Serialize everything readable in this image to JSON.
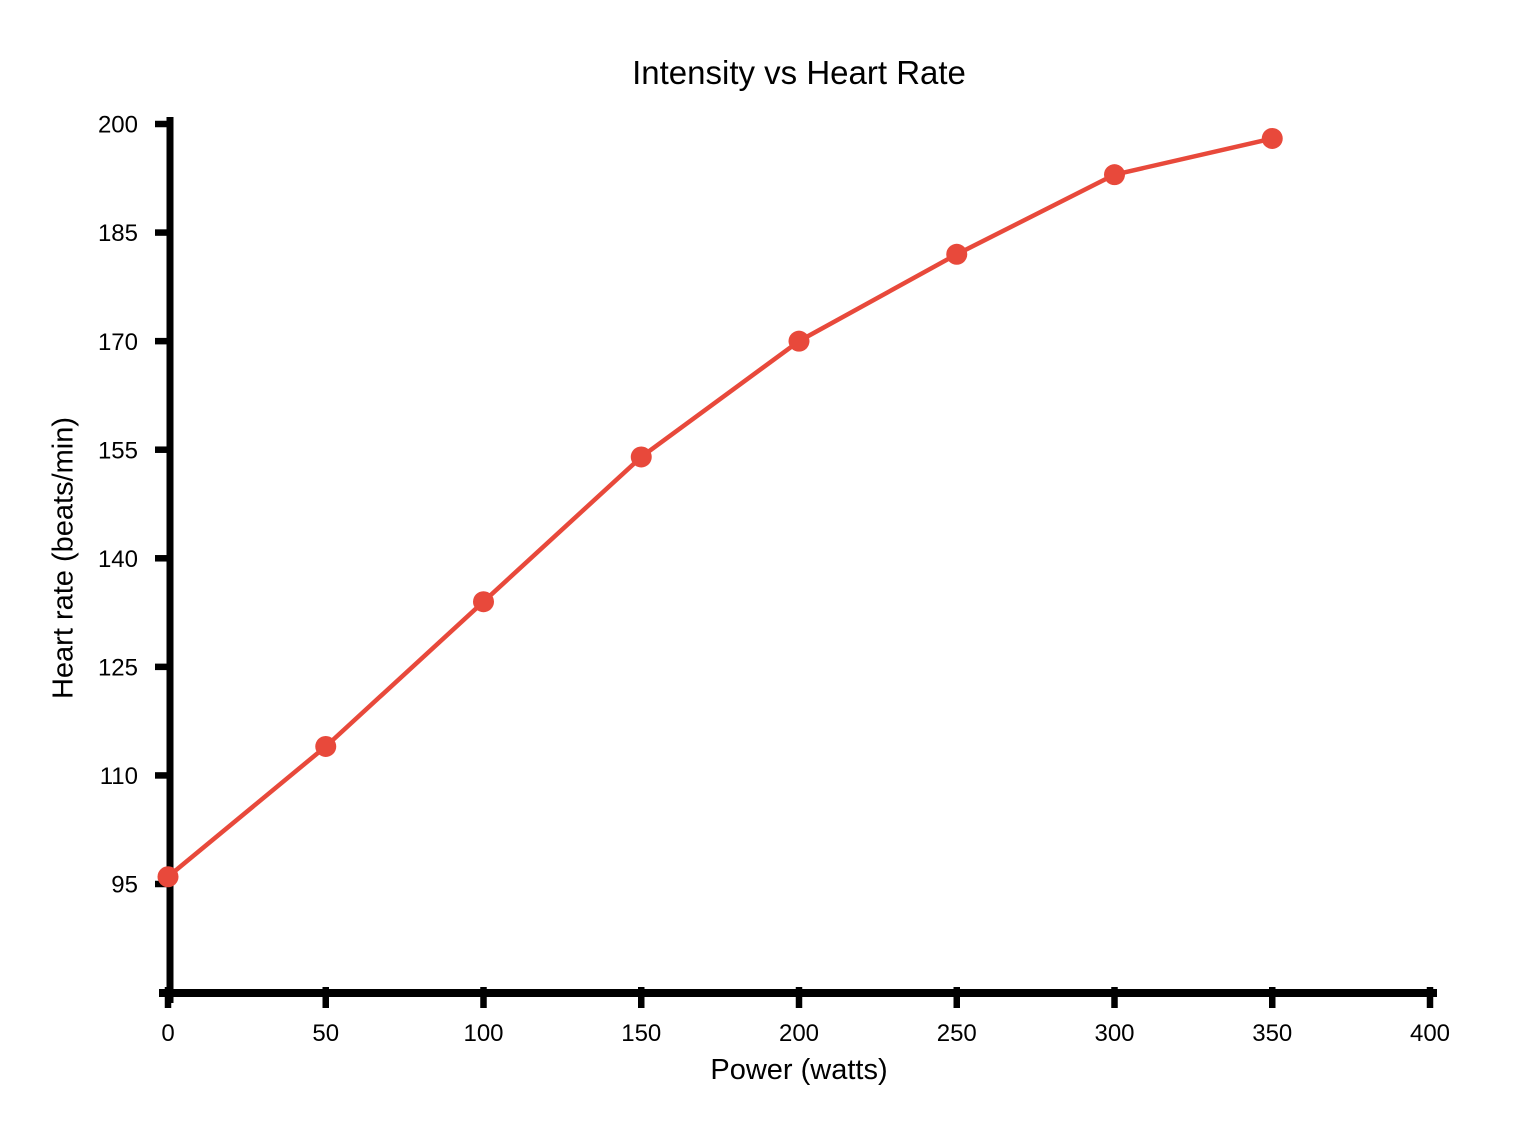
{
  "page": {
    "background_color": "#ffffff"
  },
  "chart_data": {
    "type": "line",
    "title": "Intensity vs Heart Rate",
    "xlabel": "Power (watts)",
    "ylabel": "Heart rate (beats/min)",
    "series": [
      {
        "name": "heart-rate",
        "x": [
          0,
          50,
          100,
          150,
          200,
          250,
          300,
          350
        ],
        "y": [
          96,
          114,
          134,
          154,
          170,
          182,
          193,
          198
        ],
        "color": "#E8493B",
        "marker": "circle"
      }
    ],
    "x_ticks": [
      0,
      50,
      100,
      150,
      200,
      250,
      300,
      350,
      400
    ],
    "y_ticks": [
      95,
      110,
      125,
      140,
      155,
      170,
      185,
      200
    ],
    "xlim": [
      0,
      400
    ],
    "ylim": [
      95,
      200
    ],
    "grid": false,
    "legend": "none",
    "axis_color": "#000000",
    "text_color": "#000000"
  }
}
